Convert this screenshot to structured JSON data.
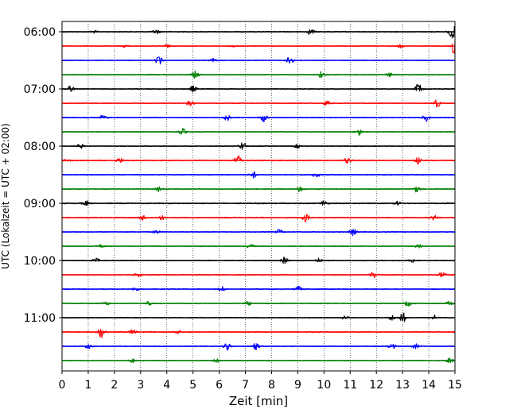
{
  "chart_data": {
    "type": "line",
    "title": "",
    "xlabel": "Zeit  [min]",
    "ylabel": "UTC (Lokalzeit = UTC + 02:00)",
    "xlim": [
      0,
      15
    ],
    "x_ticks": [
      0,
      1,
      2,
      3,
      4,
      5,
      6,
      7,
      8,
      9,
      10,
      11,
      12,
      13,
      14,
      15
    ],
    "y_tick_labels": [
      "06:00",
      "07:00",
      "08:00",
      "09:00",
      "10:00",
      "11:00"
    ],
    "x_grid": "dotted",
    "trace_colors": [
      "#000000",
      "#ff0000",
      "#0000ff",
      "#008000"
    ],
    "traces": [
      {
        "start": "06:00",
        "color": "#000000",
        "amplitude": 1.0,
        "events": [
          [
            1.2,
            0.5
          ],
          [
            3.6,
            0.9
          ],
          [
            9.5,
            1.2
          ],
          [
            14.9,
            3.0
          ]
        ]
      },
      {
        "start": "06:15",
        "color": "#ff0000",
        "amplitude": 0.9,
        "events": [
          [
            2.4,
            0.5
          ],
          [
            4.0,
            0.6
          ],
          [
            6.5,
            0.5
          ],
          [
            12.9,
            0.6
          ],
          [
            15.0,
            5.0
          ]
        ]
      },
      {
        "start": "06:30",
        "color": "#0000ff",
        "amplitude": 0.9,
        "events": [
          [
            3.7,
            1.6
          ],
          [
            5.8,
            0.7
          ],
          [
            8.7,
            1.4
          ]
        ]
      },
      {
        "start": "06:45",
        "color": "#008000",
        "amplitude": 1.0,
        "events": [
          [
            5.1,
            1.4
          ],
          [
            9.9,
            1.2
          ],
          [
            12.5,
            0.7
          ]
        ]
      },
      {
        "start": "07:00",
        "color": "#000000",
        "amplitude": 1.0,
        "events": [
          [
            0.3,
            1.6
          ],
          [
            5.0,
            1.2
          ],
          [
            13.6,
            2.0
          ]
        ]
      },
      {
        "start": "07:15",
        "color": "#ff0000",
        "amplitude": 1.0,
        "events": [
          [
            4.9,
            1.0
          ],
          [
            10.1,
            1.4
          ],
          [
            14.3,
            1.6
          ]
        ]
      },
      {
        "start": "07:30",
        "color": "#0000ff",
        "amplitude": 1.0,
        "events": [
          [
            1.6,
            1.4
          ],
          [
            6.3,
            1.2
          ],
          [
            7.7,
            1.6
          ],
          [
            13.9,
            1.4
          ]
        ]
      },
      {
        "start": "07:45",
        "color": "#008000",
        "amplitude": 0.9,
        "events": [
          [
            4.6,
            1.3
          ],
          [
            11.3,
            1.4
          ]
        ]
      },
      {
        "start": "08:00",
        "color": "#000000",
        "amplitude": 1.0,
        "events": [
          [
            0.7,
            0.9
          ],
          [
            6.9,
            1.6
          ],
          [
            9.0,
            0.7
          ]
        ]
      },
      {
        "start": "08:15",
        "color": "#ff0000",
        "amplitude": 1.1,
        "events": [
          [
            0.2,
            0.8
          ],
          [
            2.2,
            0.9
          ],
          [
            6.7,
            2.0
          ],
          [
            10.9,
            1.3
          ],
          [
            13.6,
            1.3
          ]
        ]
      },
      {
        "start": "08:30",
        "color": "#0000ff",
        "amplitude": 1.0,
        "events": [
          [
            7.3,
            1.3
          ],
          [
            9.7,
            1.1
          ]
        ]
      },
      {
        "start": "08:45",
        "color": "#008000",
        "amplitude": 1.0,
        "events": [
          [
            3.7,
            0.9
          ],
          [
            9.1,
            1.2
          ],
          [
            13.5,
            1.6
          ]
        ]
      },
      {
        "start": "09:00",
        "color": "#000000",
        "amplitude": 1.3,
        "events": [
          [
            0.9,
            0.9
          ],
          [
            10.0,
            1.1
          ],
          [
            12.8,
            0.7
          ]
        ]
      },
      {
        "start": "09:15",
        "color": "#ff0000",
        "amplitude": 1.1,
        "events": [
          [
            3.1,
            1.0
          ],
          [
            3.8,
            0.8
          ],
          [
            9.3,
            1.6
          ],
          [
            14.2,
            0.9
          ]
        ]
      },
      {
        "start": "09:30",
        "color": "#0000ff",
        "amplitude": 1.0,
        "events": [
          [
            3.6,
            0.7
          ],
          [
            8.3,
            0.9
          ],
          [
            11.1,
            1.4
          ]
        ]
      },
      {
        "start": "09:45",
        "color": "#008000",
        "amplitude": 1.0,
        "events": [
          [
            1.5,
            0.7
          ],
          [
            7.2,
            0.8
          ],
          [
            13.6,
            0.8
          ]
        ]
      },
      {
        "start": "10:00",
        "color": "#000000",
        "amplitude": 1.0,
        "events": [
          [
            1.3,
            0.8
          ],
          [
            8.5,
            1.4
          ],
          [
            9.8,
            0.9
          ],
          [
            13.4,
            0.8
          ]
        ]
      },
      {
        "start": "10:15",
        "color": "#ff0000",
        "amplitude": 1.0,
        "events": [
          [
            2.9,
            0.8
          ],
          [
            11.9,
            1.4
          ],
          [
            14.5,
            1.1
          ]
        ]
      },
      {
        "start": "10:30",
        "color": "#0000ff",
        "amplitude": 1.0,
        "events": [
          [
            2.8,
            0.8
          ],
          [
            6.1,
            0.9
          ],
          [
            9.0,
            1.1
          ]
        ]
      },
      {
        "start": "10:45",
        "color": "#008000",
        "amplitude": 1.0,
        "events": [
          [
            1.7,
            0.7
          ],
          [
            3.3,
            0.7
          ],
          [
            7.1,
            0.7
          ],
          [
            13.2,
            1.1
          ],
          [
            14.8,
            0.9
          ]
        ]
      },
      {
        "start": "11:00",
        "color": "#000000",
        "amplitude": 1.0,
        "events": [
          [
            10.8,
            0.8
          ],
          [
            12.6,
            1.0
          ],
          [
            13.0,
            2.0
          ],
          [
            14.2,
            1.0
          ]
        ]
      },
      {
        "start": "11:15",
        "color": "#ff0000",
        "amplitude": 1.2,
        "events": [
          [
            1.5,
            2.2
          ],
          [
            2.7,
            1.0
          ],
          [
            4.4,
            0.7
          ]
        ]
      },
      {
        "start": "11:30",
        "color": "#0000ff",
        "amplitude": 1.0,
        "events": [
          [
            1.0,
            0.8
          ],
          [
            6.3,
            1.4
          ],
          [
            7.4,
            1.2
          ],
          [
            12.6,
            1.0
          ],
          [
            13.5,
            0.9
          ]
        ]
      },
      {
        "start": "11:45",
        "color": "#008000",
        "amplitude": 0.9,
        "events": [
          [
            2.7,
            0.8
          ],
          [
            5.9,
            0.7
          ],
          [
            14.8,
            0.9
          ]
        ]
      }
    ]
  }
}
